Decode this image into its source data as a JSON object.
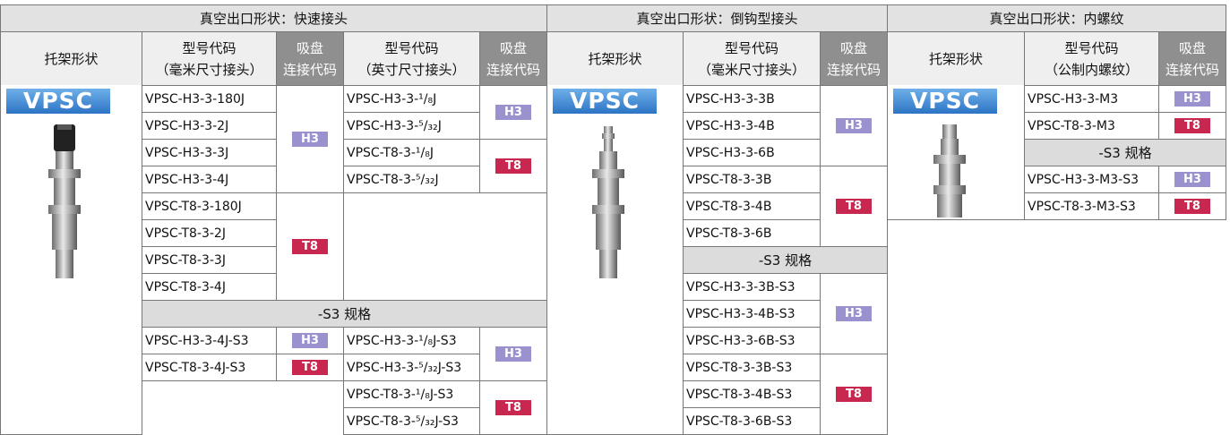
{
  "sections": [
    {
      "title": "真空出口形状：快速接头",
      "mount_header": "托架形状",
      "logo": "VPSC",
      "mm_header": [
        "型号代码",
        "（毫米尺寸接头）"
      ],
      "mm_code_header": [
        "吸盘",
        "连接代码"
      ],
      "inch_header": [
        "型号代码",
        "（英寸尺寸接头）"
      ],
      "inch_code_header": [
        "吸盘",
        "连接代码"
      ],
      "mm_models": [
        "VPSC-H3-3-180J",
        "VPSC-H3-3-2J",
        "VPSC-H3-3-3J",
        "VPSC-H3-3-4J",
        "VPSC-T8-3-180J",
        "VPSC-T8-3-2J",
        "VPSC-T8-3-3J",
        "VPSC-T8-3-4J"
      ],
      "mm_codes": [
        "H3",
        "T8"
      ],
      "inch_models": [
        "VPSC-H3-3-¹/₈J",
        "VPSC-H3-3-⁵/₃₂J",
        "VPSC-T8-3-¹/₈J",
        "VPSC-T8-3-⁵/₃₂J"
      ],
      "inch_codes": [
        "H3",
        "T8"
      ],
      "s3_title": "-S3 规格",
      "s3_mm_models": [
        "VPSC-H3-3-4J-S3",
        "VPSC-T8-3-4J-S3"
      ],
      "s3_mm_codes": [
        "H3",
        "T8"
      ],
      "s3_inch_models": [
        "VPSC-H3-3-¹/₈J-S3",
        "VPSC-H3-3-⁵/₃₂J-S3",
        "VPSC-T8-3-¹/₈J-S3",
        "VPSC-T8-3-⁵/₃₂J-S3"
      ],
      "s3_inch_codes": [
        "H3",
        "T8"
      ]
    },
    {
      "title": "真空出口形状：倒钩型接头",
      "mount_header": "托架形状",
      "logo": "VPSC",
      "mm_header": [
        "型号代码",
        "（毫米尺寸接头）"
      ],
      "mm_code_header": [
        "吸盘",
        "连接代码"
      ],
      "mm_models": [
        "VPSC-H3-3-3B",
        "VPSC-H3-3-4B",
        "VPSC-H3-3-6B",
        "VPSC-T8-3-3B",
        "VPSC-T8-3-4B",
        "VPSC-T8-3-6B"
      ],
      "mm_codes": [
        "H3",
        "T8"
      ],
      "s3_title": "-S3 规格",
      "s3_mm_models": [
        "VPSC-H3-3-3B-S3",
        "VPSC-H3-3-4B-S3",
        "VPSC-H3-3-6B-S3",
        "VPSC-T8-3-3B-S3",
        "VPSC-T8-3-4B-S3",
        "VPSC-T8-3-6B-S3"
      ],
      "s3_mm_codes": [
        "H3",
        "T8"
      ]
    },
    {
      "title": "真空出口形状：内螺纹",
      "mount_header": "托架形状",
      "logo": "VPSC",
      "mm_header": [
        "型号代码",
        "（公制内螺纹）"
      ],
      "mm_code_header": [
        "吸盘",
        "连接代码"
      ],
      "mm_models": [
        "VPSC-H3-3-M3",
        "VPSC-T8-3-M3"
      ],
      "mm_codes": [
        "H3",
        "T8"
      ],
      "s3_title": "-S3 规格",
      "s3_mm_models": [
        "VPSC-H3-3-M3-S3",
        "VPSC-T8-3-M3-S3"
      ],
      "s3_mm_codes": [
        "H3",
        "T8"
      ]
    }
  ]
}
